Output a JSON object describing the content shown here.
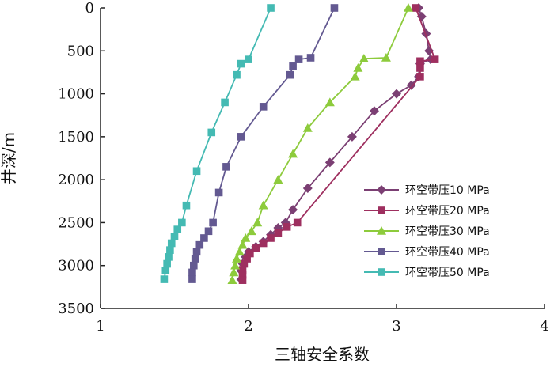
{
  "chart_data": {
    "type": "line",
    "xlabel": "三轴安全系数",
    "ylabel": "井深/m",
    "xlim": [
      1,
      4
    ],
    "ylim": [
      0,
      3500
    ],
    "y_inverted": true,
    "x_axis_position": "top",
    "grid": false,
    "legend_position": "bottom-right",
    "xticks": [
      "1",
      "2",
      "3",
      "4"
    ],
    "yticks": [
      "0",
      "500",
      "1000",
      "1500",
      "2000",
      "2500",
      "3000",
      "3500"
    ],
    "series": [
      {
        "name": "环空带压10 MPa",
        "color": "#7b3f73",
        "marker": "diamond",
        "points": [
          [
            3.15,
            0
          ],
          [
            3.17,
            100
          ],
          [
            3.2,
            300
          ],
          [
            3.22,
            500
          ],
          [
            3.23,
            600
          ],
          [
            3.16,
            650
          ],
          [
            3.15,
            800
          ],
          [
            3.1,
            900
          ],
          [
            3.0,
            1000
          ],
          [
            2.85,
            1200
          ],
          [
            2.7,
            1500
          ],
          [
            2.55,
            1800
          ],
          [
            2.4,
            2100
          ],
          [
            2.3,
            2350
          ],
          [
            2.25,
            2500
          ],
          [
            2.2,
            2560
          ],
          [
            2.15,
            2640
          ],
          [
            2.1,
            2720
          ],
          [
            2.05,
            2780
          ],
          [
            2.0,
            2840
          ],
          [
            1.98,
            2900
          ],
          [
            1.96,
            2980
          ],
          [
            1.95,
            3060
          ],
          [
            1.95,
            3160
          ]
        ]
      },
      {
        "name": "环空带压20 MPa",
        "color": "#9e2f5f",
        "marker": "square",
        "points": [
          [
            3.13,
            0
          ],
          [
            3.26,
            600
          ],
          [
            3.16,
            620
          ],
          [
            3.16,
            700
          ],
          [
            3.16,
            800
          ],
          [
            2.33,
            2500
          ],
          [
            2.26,
            2550
          ],
          [
            2.2,
            2620
          ],
          [
            2.15,
            2680
          ],
          [
            2.1,
            2740
          ],
          [
            2.05,
            2800
          ],
          [
            2.01,
            2860
          ],
          [
            1.99,
            2920
          ],
          [
            1.97,
            2980
          ],
          [
            1.96,
            3050
          ],
          [
            1.96,
            3110
          ],
          [
            1.96,
            3170
          ]
        ]
      },
      {
        "name": "环空带压30 MPa",
        "color": "#8dcb3c",
        "marker": "triangle",
        "points": [
          [
            3.08,
            0
          ],
          [
            2.93,
            580
          ],
          [
            2.78,
            590
          ],
          [
            2.74,
            700
          ],
          [
            2.72,
            800
          ],
          [
            2.55,
            1100
          ],
          [
            2.4,
            1400
          ],
          [
            2.3,
            1700
          ],
          [
            2.2,
            2000
          ],
          [
            2.1,
            2300
          ],
          [
            2.06,
            2500
          ],
          [
            2.02,
            2600
          ],
          [
            1.98,
            2680
          ],
          [
            1.96,
            2760
          ],
          [
            1.94,
            2840
          ],
          [
            1.92,
            2920
          ],
          [
            1.91,
            3000
          ],
          [
            1.9,
            3080
          ],
          [
            1.89,
            3170
          ]
        ]
      },
      {
        "name": "环空带压40 MPa",
        "color": "#635991",
        "marker": "square",
        "points": [
          [
            2.58,
            0
          ],
          [
            2.42,
            580
          ],
          [
            2.34,
            600
          ],
          [
            2.3,
            680
          ],
          [
            2.28,
            780
          ],
          [
            2.1,
            1150
          ],
          [
            1.95,
            1500
          ],
          [
            1.85,
            1850
          ],
          [
            1.8,
            2150
          ],
          [
            1.76,
            2500
          ],
          [
            1.73,
            2600
          ],
          [
            1.7,
            2680
          ],
          [
            1.67,
            2760
          ],
          [
            1.65,
            2840
          ],
          [
            1.64,
            2920
          ],
          [
            1.63,
            3000
          ],
          [
            1.62,
            3080
          ],
          [
            1.62,
            3160
          ]
        ]
      },
      {
        "name": "环空带压50 MPa",
        "color": "#44bab3",
        "marker": "square",
        "points": [
          [
            2.15,
            0
          ],
          [
            2.0,
            600
          ],
          [
            1.95,
            650
          ],
          [
            1.92,
            780
          ],
          [
            1.84,
            1100
          ],
          [
            1.75,
            1450
          ],
          [
            1.65,
            1900
          ],
          [
            1.58,
            2300
          ],
          [
            1.55,
            2500
          ],
          [
            1.52,
            2580
          ],
          [
            1.5,
            2660
          ],
          [
            1.48,
            2740
          ],
          [
            1.47,
            2820
          ],
          [
            1.46,
            2900
          ],
          [
            1.45,
            2980
          ],
          [
            1.44,
            3060
          ],
          [
            1.43,
            3160
          ]
        ]
      }
    ]
  }
}
